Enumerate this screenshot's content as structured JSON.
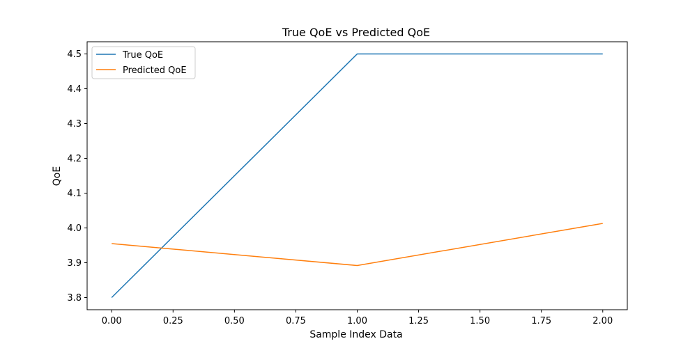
{
  "chart_data": {
    "type": "line",
    "title": "True QoE vs Predicted QoE",
    "xlabel": "Sample Index Data",
    "ylabel": "QoE",
    "x": [
      0,
      1,
      2
    ],
    "xlim": [
      -0.1,
      2.1
    ],
    "ylim": [
      3.765,
      4.535
    ],
    "x_ticks": [
      "0.00",
      "0.25",
      "0.50",
      "0.75",
      "1.00",
      "1.25",
      "1.50",
      "1.75",
      "2.00"
    ],
    "y_ticks": [
      "3.8",
      "3.9",
      "4.0",
      "4.1",
      "4.2",
      "4.3",
      "4.4",
      "4.5"
    ],
    "grid": false,
    "legend_position": "top-left",
    "series": [
      {
        "name": "True QoE",
        "color": "#1f77b4",
        "values": [
          3.8,
          4.5,
          4.5
        ]
      },
      {
        "name": "Predicted QoE",
        "color": "#ff7f0e",
        "values": [
          3.955,
          3.892,
          4.013
        ]
      }
    ]
  }
}
